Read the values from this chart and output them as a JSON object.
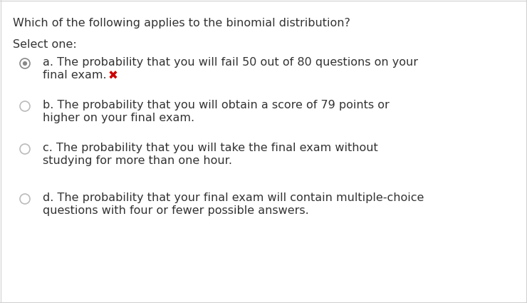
{
  "title": "Which of the following applies to the binomial distribution?",
  "subtitle": "Select one:",
  "bg_color": "#ffffff",
  "border_color": "#d0d0d0",
  "title_fontsize": 11.5,
  "subtitle_fontsize": 11.5,
  "option_fontsize": 11.5,
  "text_color": "#333333",
  "radio_color": "#bbbbbb",
  "radio_selected_fill": "#888888",
  "radio_selected_outline": "#888888",
  "options": [
    {
      "line1": "a. The probability that you will fail 50 out of 80 questions on your",
      "line2": "final exam.",
      "selected": true,
      "wrong": true
    },
    {
      "line1": "b. The probability that you will obtain a score of 79 points or",
      "line2": "higher on your final exam.",
      "selected": false,
      "wrong": false
    },
    {
      "line1": "c. The probability that you will take the final exam without",
      "line2": "studying for more than one hour.",
      "selected": false,
      "wrong": false
    },
    {
      "line1": "d. The probability that your final exam will contain multiple-choice",
      "line2": "questions with four or fewer possible answers.",
      "selected": false,
      "wrong": false
    }
  ],
  "wrong_mark": "✖",
  "wrong_mark_color": "#cc0000",
  "wrong_mark_fontsize": 12
}
